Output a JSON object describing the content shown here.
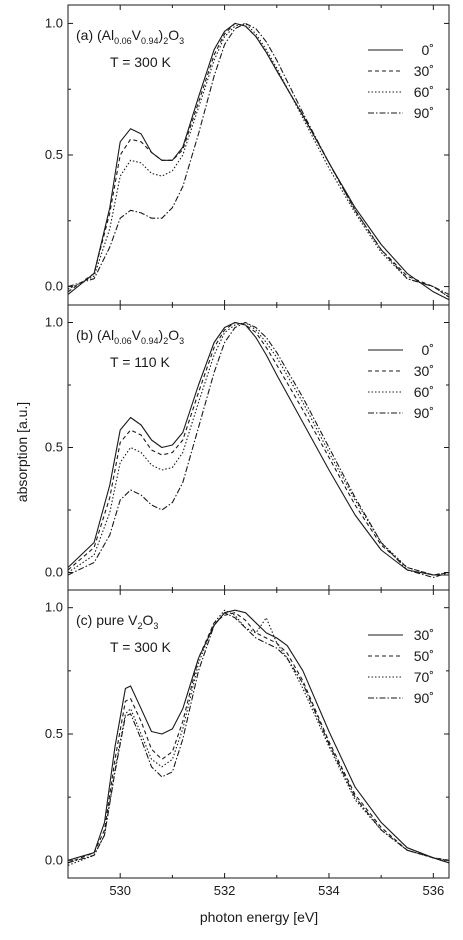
{
  "chart_data": [
    {
      "type": "line",
      "panel_label": "(a)",
      "annotation_parts": [
        {
          "text": "(Al",
          "sub": false
        },
        {
          "text": "0.06",
          "sub": true
        },
        {
          "text": "V",
          "sub": false
        },
        {
          "text": "0.94",
          "sub": true
        },
        {
          "text": ")",
          "sub": false
        },
        {
          "text": "2",
          "sub": true
        },
        {
          "text": "O",
          "sub": false
        },
        {
          "text": "3",
          "sub": true
        }
      ],
      "temperature": "T = 300 K",
      "xlim": [
        529.0,
        536.3
      ],
      "ylim": [
        -0.07,
        1.07
      ],
      "yticks": [
        "0.0",
        "0.5",
        "1.0"
      ],
      "legend_position": "top-right",
      "series": [
        {
          "name": "0˚",
          "dash": "solid",
          "x": [
            529.0,
            529.5,
            529.8,
            530.0,
            530.2,
            530.4,
            530.6,
            530.8,
            531.0,
            531.2,
            531.5,
            531.8,
            532.0,
            532.2,
            532.4,
            532.6,
            532.8,
            533.0,
            533.5,
            534.0,
            534.5,
            535.0,
            535.5,
            536.0,
            536.3
          ],
          "y": [
            -0.03,
            0.05,
            0.3,
            0.55,
            0.6,
            0.58,
            0.51,
            0.48,
            0.48,
            0.53,
            0.72,
            0.9,
            0.97,
            1.0,
            0.99,
            0.95,
            0.89,
            0.82,
            0.65,
            0.47,
            0.3,
            0.16,
            0.05,
            -0.02,
            -0.05
          ]
        },
        {
          "name": "30˚",
          "dash": "4 3",
          "x": [
            529.0,
            529.5,
            529.8,
            530.0,
            530.2,
            530.4,
            530.6,
            530.8,
            531.0,
            531.2,
            531.5,
            531.8,
            532.0,
            532.2,
            532.4,
            532.6,
            532.8,
            533.0,
            533.5,
            534.0,
            534.5,
            535.0,
            535.5,
            536.0,
            536.3
          ],
          "y": [
            -0.02,
            0.05,
            0.28,
            0.5,
            0.56,
            0.55,
            0.51,
            0.48,
            0.48,
            0.52,
            0.7,
            0.88,
            0.96,
            1.0,
            0.99,
            0.95,
            0.89,
            0.82,
            0.65,
            0.47,
            0.29,
            0.14,
            0.04,
            0.0,
            -0.04
          ]
        },
        {
          "name": "60˚",
          "dash": "1.5 2",
          "x": [
            529.0,
            529.5,
            529.8,
            530.0,
            530.2,
            530.4,
            530.6,
            530.8,
            531.0,
            531.2,
            531.5,
            531.8,
            532.0,
            532.2,
            532.4,
            532.6,
            532.8,
            533.0,
            533.5,
            534.0,
            534.5,
            535.0,
            535.5,
            536.0,
            536.3
          ],
          "y": [
            -0.01,
            0.04,
            0.22,
            0.42,
            0.48,
            0.47,
            0.43,
            0.42,
            0.44,
            0.5,
            0.68,
            0.86,
            0.95,
            0.99,
            1.0,
            0.96,
            0.9,
            0.83,
            0.64,
            0.45,
            0.28,
            0.13,
            0.03,
            0.0,
            -0.04
          ]
        },
        {
          "name": "90˚",
          "dash": "6 2 1.5 2",
          "x": [
            529.0,
            529.5,
            529.8,
            530.0,
            530.2,
            530.4,
            530.6,
            530.8,
            531.0,
            531.2,
            531.5,
            531.8,
            532.0,
            532.2,
            532.4,
            532.6,
            532.8,
            533.0,
            533.5,
            534.0,
            534.5,
            535.0,
            535.5,
            536.0,
            536.3
          ],
          "y": [
            0.0,
            0.03,
            0.15,
            0.26,
            0.29,
            0.28,
            0.26,
            0.26,
            0.3,
            0.38,
            0.58,
            0.8,
            0.92,
            0.98,
            1.0,
            0.98,
            0.93,
            0.86,
            0.66,
            0.47,
            0.29,
            0.14,
            0.03,
            0.0,
            -0.03
          ]
        }
      ]
    },
    {
      "type": "line",
      "panel_label": "(b)",
      "annotation_parts": [
        {
          "text": "(Al",
          "sub": false
        },
        {
          "text": "0.06",
          "sub": true
        },
        {
          "text": "V",
          "sub": false
        },
        {
          "text": "0.94",
          "sub": true
        },
        {
          "text": ")",
          "sub": false
        },
        {
          "text": "2",
          "sub": true
        },
        {
          "text": "O",
          "sub": false
        },
        {
          "text": "3",
          "sub": true
        }
      ],
      "temperature": "T = 110 K",
      "xlim": [
        529.0,
        536.3
      ],
      "ylim": [
        -0.07,
        1.07
      ],
      "yticks": [
        "0.0",
        "0.5",
        "1.0"
      ],
      "legend_position": "top-right",
      "series": [
        {
          "name": "0˚",
          "dash": "solid",
          "x": [
            529.0,
            529.5,
            529.8,
            530.0,
            530.2,
            530.4,
            530.6,
            530.8,
            531.0,
            531.2,
            531.5,
            531.8,
            532.0,
            532.2,
            532.4,
            532.6,
            532.8,
            533.0,
            533.5,
            534.0,
            534.5,
            535.0,
            535.5,
            536.0,
            536.3
          ],
          "y": [
            0.02,
            0.12,
            0.35,
            0.57,
            0.62,
            0.59,
            0.53,
            0.5,
            0.51,
            0.56,
            0.75,
            0.92,
            0.98,
            1.0,
            0.99,
            0.94,
            0.87,
            0.79,
            0.6,
            0.41,
            0.23,
            0.09,
            0.01,
            -0.01,
            -0.01
          ]
        },
        {
          "name": "30˚",
          "dash": "4 3",
          "x": [
            529.0,
            529.5,
            529.8,
            530.0,
            530.2,
            530.4,
            530.6,
            530.8,
            531.0,
            531.2,
            531.5,
            531.8,
            532.0,
            532.2,
            532.4,
            532.6,
            532.8,
            533.0,
            533.5,
            534.0,
            534.5,
            535.0,
            535.5,
            536.0,
            536.3
          ],
          "y": [
            0.01,
            0.1,
            0.3,
            0.52,
            0.57,
            0.55,
            0.49,
            0.47,
            0.48,
            0.53,
            0.72,
            0.9,
            0.97,
            1.0,
            0.99,
            0.96,
            0.9,
            0.83,
            0.65,
            0.46,
            0.27,
            0.11,
            0.02,
            -0.01,
            0.0
          ]
        },
        {
          "name": "60˚",
          "dash": "1.5 2",
          "x": [
            529.0,
            529.5,
            529.8,
            530.0,
            530.2,
            530.4,
            530.6,
            530.8,
            531.0,
            531.2,
            531.5,
            531.8,
            532.0,
            532.2,
            532.4,
            532.6,
            532.8,
            533.0,
            533.5,
            534.0,
            534.5,
            535.0,
            535.5,
            536.0,
            536.3
          ],
          "y": [
            0.0,
            0.07,
            0.24,
            0.44,
            0.5,
            0.48,
            0.43,
            0.41,
            0.42,
            0.48,
            0.68,
            0.87,
            0.96,
            0.99,
            1.0,
            0.97,
            0.92,
            0.86,
            0.68,
            0.48,
            0.29,
            0.12,
            0.02,
            -0.01,
            0.0
          ]
        },
        {
          "name": "90˚",
          "dash": "6 2 1.5 2",
          "x": [
            529.0,
            529.5,
            529.8,
            530.0,
            530.2,
            530.4,
            530.6,
            530.8,
            531.0,
            531.2,
            531.5,
            531.8,
            532.0,
            532.2,
            532.4,
            532.6,
            532.8,
            533.0,
            533.5,
            534.0,
            534.5,
            535.0,
            535.5,
            536.0,
            536.3
          ],
          "y": [
            -0.01,
            0.04,
            0.15,
            0.29,
            0.33,
            0.31,
            0.27,
            0.25,
            0.28,
            0.36,
            0.58,
            0.8,
            0.92,
            0.98,
            1.0,
            0.98,
            0.94,
            0.88,
            0.7,
            0.5,
            0.3,
            0.12,
            0.01,
            -0.02,
            0.0
          ]
        }
      ]
    },
    {
      "type": "line",
      "panel_label": "(c)",
      "annotation_parts": [
        {
          "text": "pure V",
          "sub": false
        },
        {
          "text": "2",
          "sub": true
        },
        {
          "text": "O",
          "sub": false
        },
        {
          "text": "3",
          "sub": true
        }
      ],
      "temperature": "T = 300 K",
      "xlim": [
        529.0,
        536.3
      ],
      "ylim": [
        -0.07,
        1.07
      ],
      "yticks": [
        "0.0",
        "0.5",
        "1.0"
      ],
      "xticks": [
        "530",
        "532",
        "534",
        "536"
      ],
      "legend_position": "top-right",
      "series": [
        {
          "name": "30˚",
          "dash": "solid",
          "x": [
            529.0,
            529.5,
            529.7,
            529.9,
            530.1,
            530.2,
            530.4,
            530.6,
            530.8,
            531.0,
            531.2,
            531.5,
            531.8,
            532.0,
            532.2,
            532.4,
            532.6,
            532.8,
            533.0,
            533.2,
            533.5,
            534.0,
            534.5,
            535.0,
            535.5,
            536.0,
            536.3
          ],
          "y": [
            0.0,
            0.03,
            0.15,
            0.45,
            0.68,
            0.69,
            0.6,
            0.51,
            0.5,
            0.52,
            0.6,
            0.8,
            0.93,
            0.98,
            0.99,
            0.98,
            0.94,
            0.9,
            0.88,
            0.85,
            0.75,
            0.51,
            0.29,
            0.15,
            0.05,
            0.01,
            -0.01
          ]
        },
        {
          "name": "50˚",
          "dash": "4 3",
          "x": [
            529.0,
            529.5,
            529.7,
            529.9,
            530.1,
            530.2,
            530.4,
            530.6,
            530.8,
            531.0,
            531.2,
            531.5,
            531.8,
            532.0,
            532.2,
            532.4,
            532.6,
            532.8,
            533.0,
            533.2,
            533.5,
            534.0,
            534.5,
            535.0,
            535.5,
            536.0,
            536.3
          ],
          "y": [
            -0.01,
            0.03,
            0.12,
            0.4,
            0.63,
            0.64,
            0.55,
            0.44,
            0.4,
            0.43,
            0.55,
            0.8,
            0.94,
            0.97,
            0.98,
            0.95,
            0.9,
            0.88,
            0.86,
            0.82,
            0.71,
            0.47,
            0.26,
            0.13,
            0.04,
            0.01,
            0.0
          ]
        },
        {
          "name": "70˚",
          "dash": "1.5 2",
          "x": [
            529.0,
            529.5,
            529.7,
            529.9,
            530.1,
            530.2,
            530.4,
            530.6,
            530.8,
            531.0,
            531.2,
            531.5,
            531.8,
            532.0,
            532.2,
            532.4,
            532.6,
            532.8,
            533.0,
            533.2,
            533.5,
            534.0,
            534.5,
            535.0,
            535.5,
            536.0,
            536.3
          ],
          "y": [
            -0.02,
            0.02,
            0.1,
            0.36,
            0.58,
            0.6,
            0.5,
            0.4,
            0.37,
            0.4,
            0.52,
            0.78,
            0.94,
            0.99,
            0.97,
            0.92,
            0.9,
            0.96,
            0.86,
            0.8,
            0.68,
            0.45,
            0.24,
            0.12,
            0.04,
            0.01,
            0.0
          ]
        },
        {
          "name": "90˚",
          "dash": "6 2 1.5 2",
          "x": [
            529.0,
            529.5,
            529.7,
            529.9,
            530.1,
            530.2,
            530.4,
            530.6,
            530.8,
            531.0,
            531.2,
            531.5,
            531.8,
            532.0,
            532.2,
            532.4,
            532.6,
            532.8,
            533.0,
            533.2,
            533.5,
            534.0,
            534.5,
            535.0,
            535.5,
            536.0,
            536.3
          ],
          "y": [
            -0.01,
            0.02,
            0.1,
            0.35,
            0.57,
            0.58,
            0.48,
            0.37,
            0.33,
            0.35,
            0.48,
            0.75,
            0.93,
            0.98,
            0.96,
            0.92,
            0.88,
            0.86,
            0.84,
            0.8,
            0.7,
            0.46,
            0.25,
            0.12,
            0.04,
            0.01,
            -0.01
          ]
        }
      ]
    }
  ],
  "xlabel": "photon energy [eV]",
  "ylabel": "absorption [a.u.]"
}
